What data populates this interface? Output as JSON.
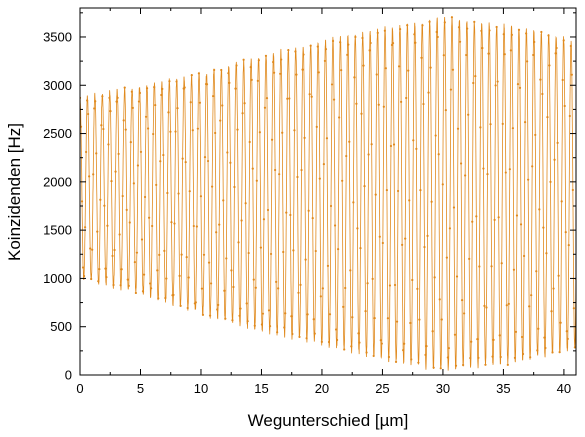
{
  "chart_data": {
    "type": "line",
    "title": "",
    "xlabel": "Wegunterschied [µm]",
    "ylabel": "Koinzidenden [Hz]",
    "xlim": [
      0,
      41
    ],
    "ylim": [
      0,
      3800
    ],
    "xticks": [
      0,
      5,
      10,
      15,
      20,
      25,
      30,
      35,
      40
    ],
    "yticks": [
      0,
      500,
      1000,
      1500,
      2000,
      2500,
      3000,
      3500
    ],
    "grid": false,
    "legend": "none",
    "series_color": "#e08a1e",
    "fringe_period": 0.615,
    "envelope": {
      "x": [
        0,
        5,
        10,
        15,
        20,
        25,
        30,
        35,
        40,
        41
      ],
      "upper": [
        2870,
        2990,
        3110,
        3300,
        3450,
        3580,
        3700,
        3620,
        3500,
        3400
      ],
      "lower": [
        1000,
        850,
        640,
        460,
        320,
        170,
        50,
        120,
        230,
        300
      ]
    }
  }
}
